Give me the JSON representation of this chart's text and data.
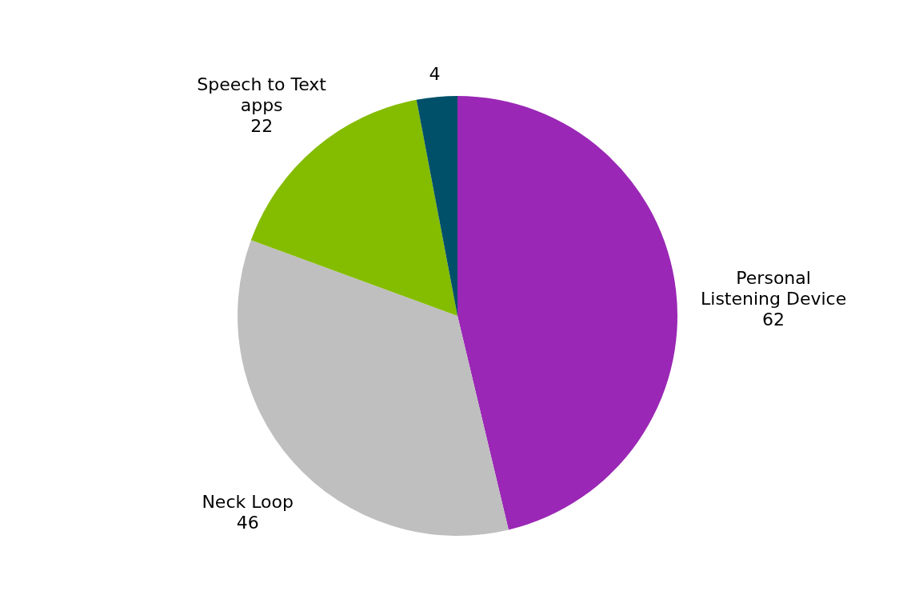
{
  "chart_data": {
    "type": "pie",
    "categories": [
      "Personal Listening Device",
      "Neck Loop",
      "Speech to Text apps",
      null
    ],
    "values": [
      62,
      46,
      22,
      4
    ],
    "colors": [
      "#9a27b5",
      "#bfbfbf",
      "#84bc00",
      "#005069"
    ],
    "data_labels": true
  }
}
